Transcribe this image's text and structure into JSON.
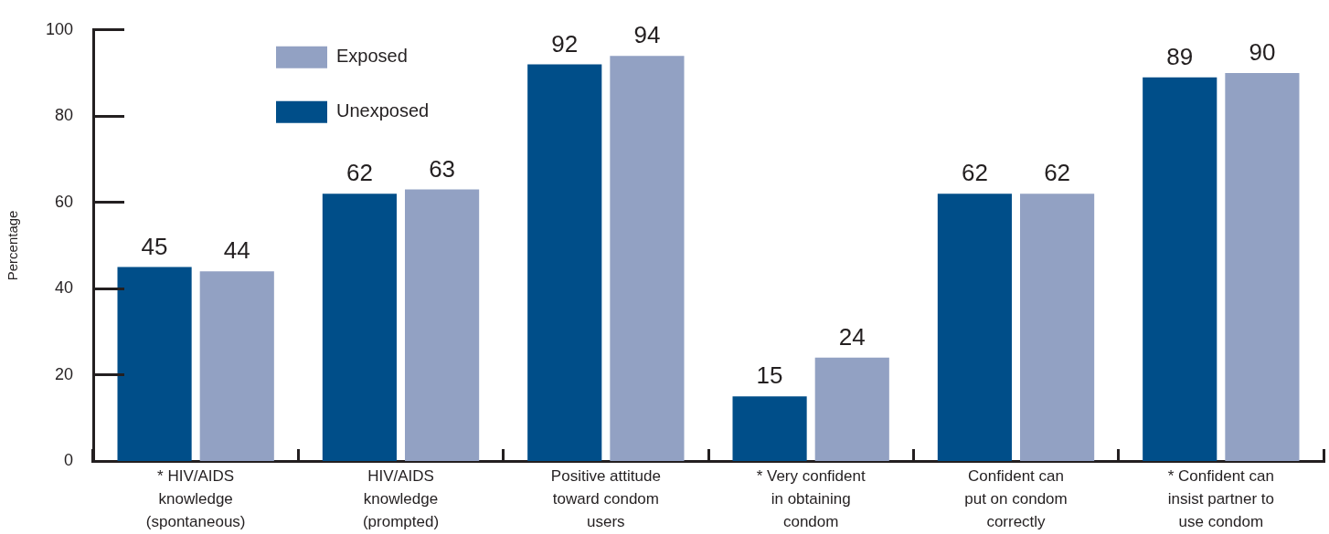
{
  "chart_data": {
    "type": "bar",
    "ylabel": "Percentage",
    "categories": [
      "* HIV/AIDS knowledge (spontaneous)",
      "HIV/AIDS knowledge (prompted)",
      "Positive attitude toward condom users",
      "* Very confident in obtaining condom",
      "Confident can put on condom correctly",
      "* Confident can insist partner to use condom"
    ],
    "series": [
      {
        "name": "Unexposed",
        "color": "#004e89",
        "values": [
          45,
          62,
          92,
          15,
          62,
          89
        ]
      },
      {
        "name": "Exposed",
        "color": "#92a1c3",
        "values": [
          44,
          63,
          94,
          24,
          62,
          90
        ]
      }
    ],
    "ylim": [
      0,
      100
    ],
    "yticks": [
      0,
      20,
      40,
      60,
      80,
      100
    ],
    "data_labels": true,
    "legend": "top left",
    "grid": false
  }
}
